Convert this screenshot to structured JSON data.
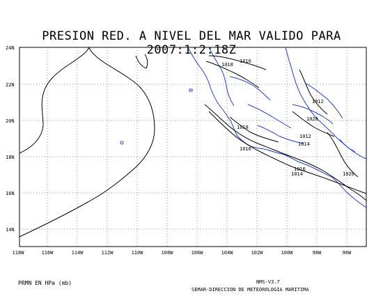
{
  "title": "PRESION RED. A NIVEL DEL MAR VALIDO PARA 2007:1:2:18Z",
  "lat_labels": [
    "24N",
    "22N",
    "20N",
    "18N",
    "16N",
    "14N"
  ],
  "lon_labels": [
    "118W",
    "116W",
    "114W",
    "112W",
    "110W",
    "108W",
    "106W",
    "104W",
    "102W",
    "100W",
    "98W",
    "96W"
  ],
  "contour_labels": [
    "1018",
    "1016",
    "1012",
    "1020",
    "1018",
    "1016",
    "1014",
    "1012",
    "1016",
    "1014",
    "1020"
  ],
  "footer": {
    "units": "PRMN EN HPa (mb)",
    "version": "NMS-V3.7",
    "agency": "SEMAR-DIRECCION DE METEOROLOGIA MARITIMA"
  },
  "colors": {
    "coast": "#1f3fd6",
    "contour": "#000000",
    "grid": "#555555"
  }
}
